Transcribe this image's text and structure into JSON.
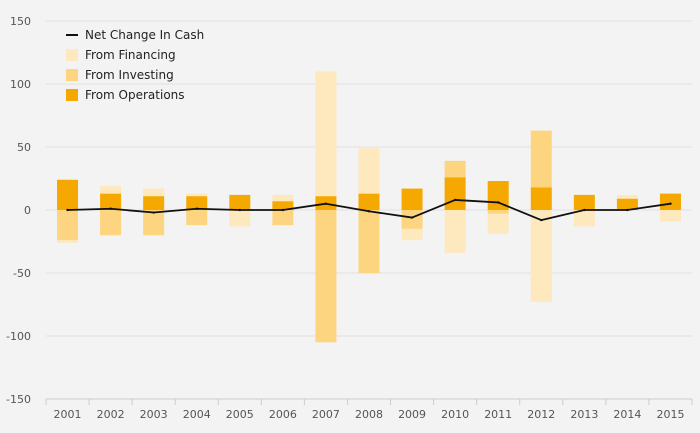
{
  "chart_data": {
    "type": "bar",
    "title": "",
    "xlabel": "",
    "ylabel": "",
    "categories": [
      "2001",
      "2002",
      "2003",
      "2004",
      "2005",
      "2006",
      "2007",
      "2008",
      "2009",
      "2010",
      "2011",
      "2012",
      "2013",
      "2014",
      "2015"
    ],
    "ylim": [
      -150,
      150
    ],
    "yticks": [
      150,
      100,
      50,
      0,
      -50,
      -100,
      -150
    ],
    "ytick_labels": [
      "150",
      "100",
      "50",
      "0",
      "-50",
      "-100",
      "-150"
    ],
    "grid": true,
    "legend_position": "top-left",
    "colors": {
      "background": "#f3f3f3",
      "gridline": "#e2e2e2",
      "axis": "#cccccc",
      "operations": "#f5a800",
      "investing": "#fdd47f",
      "financing": "#fee8bd",
      "net": "#111111"
    },
    "series": [
      {
        "name": "From Operations",
        "kind": "bar",
        "values": [
          24,
          13,
          11,
          11,
          12,
          7,
          11,
          13,
          17,
          26,
          23,
          18,
          12,
          9,
          13
        ]
      },
      {
        "name": "From Investing",
        "kind": "bar",
        "values": [
          -24,
          -20,
          -20,
          -12,
          0,
          -12,
          -105,
          -50,
          -15,
          13,
          -3,
          45,
          0,
          0,
          0
        ]
      },
      {
        "name": "From Financing",
        "kind": "bar",
        "values": [
          -2,
          6,
          6,
          2,
          -13,
          5,
          99,
          36,
          -9,
          -34,
          -16,
          -73,
          -13,
          3,
          -9
        ]
      },
      {
        "name": "Net Change In Cash",
        "kind": "line",
        "values": [
          0,
          1,
          -2,
          1,
          0,
          0,
          5,
          -1,
          -6,
          8,
          6,
          -8,
          0,
          0,
          5
        ]
      }
    ],
    "legend": [
      {
        "label": "Net Change In Cash",
        "series": "Net Change In Cash",
        "symbol": "line"
      },
      {
        "label": "From Financing",
        "series": "From Financing",
        "symbol": "box"
      },
      {
        "label": "From Investing",
        "series": "From Investing",
        "symbol": "box"
      },
      {
        "label": "From Operations",
        "series": "From Operations",
        "symbol": "box"
      }
    ]
  }
}
